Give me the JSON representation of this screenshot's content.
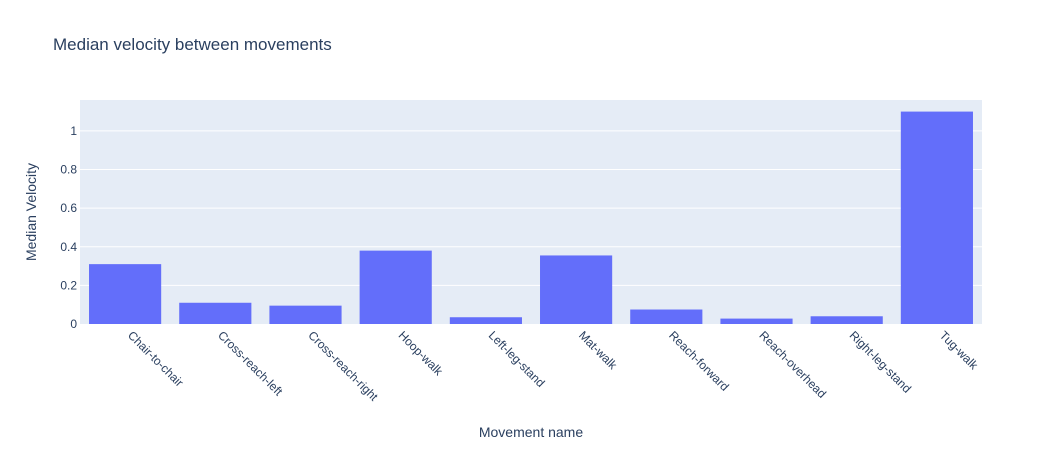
{
  "chart_data": {
    "type": "bar",
    "title": "Median velocity between movements",
    "xlabel": "Movement name",
    "ylabel": "Median Velocity",
    "categories": [
      "Chair-to-chair",
      "Cross-reach-left",
      "Cross-reach-right",
      "Hoop-walk",
      "Left-leg-stand",
      "Mat-walk",
      "Reach-forward",
      "Reach-overhead",
      "Right-leg-stand",
      "Tug-walk"
    ],
    "values": [
      0.31,
      0.11,
      0.095,
      0.38,
      0.035,
      0.355,
      0.075,
      0.028,
      0.04,
      1.1
    ],
    "ylim": [
      0,
      1.16
    ],
    "yticks": [
      0,
      0.2,
      0.4,
      0.6,
      0.8,
      1
    ],
    "ytick_labels": [
      "0",
      "0.2",
      "0.4",
      "0.6",
      "0.8",
      "1"
    ],
    "grid": true,
    "legend": "none",
    "colors": {
      "bar": "#636efa",
      "plot_bg": "#e5ecf6",
      "grid": "#ffffff",
      "text": "#2a3f5f"
    }
  }
}
